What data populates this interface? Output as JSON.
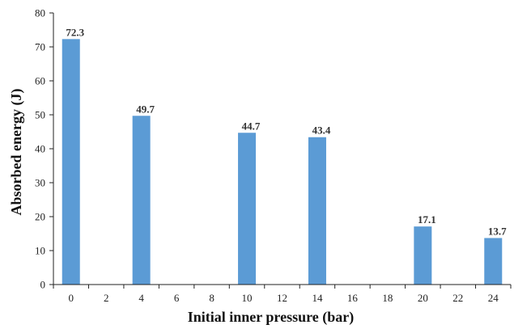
{
  "chart_data": {
    "type": "bar",
    "title": "",
    "xlabel": "Initial inner pressure (bar)",
    "ylabel": "Absorbed energy (J)",
    "categories": [
      "0",
      "2",
      "4",
      "6",
      "8",
      "10",
      "12",
      "14",
      "16",
      "18",
      "20",
      "22",
      "24"
    ],
    "values": [
      72.3,
      null,
      49.7,
      null,
      null,
      44.7,
      null,
      43.4,
      null,
      null,
      17.1,
      null,
      13.7
    ],
    "data_labels": [
      "72.3",
      "",
      "49.7",
      "",
      "",
      "44.7",
      "",
      "43.4",
      "",
      "",
      "17.1",
      "",
      "13.7"
    ],
    "y_ticks": [
      "0",
      "10",
      "20",
      "30",
      "40",
      "50",
      "60",
      "70",
      "80"
    ],
    "ylim": [
      0,
      80
    ],
    "grid": false,
    "legend": "none",
    "bar_color": "#5b9bd5"
  }
}
